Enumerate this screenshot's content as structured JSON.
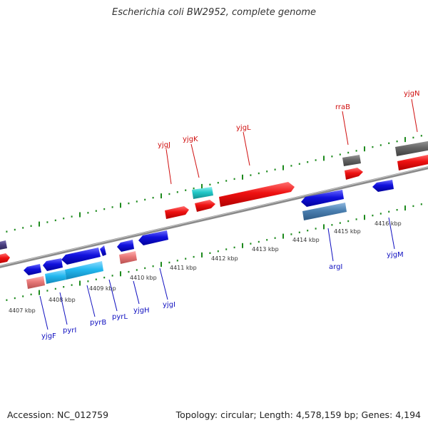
{
  "title": "Escherichia coli BW2952, complete genome",
  "footer": {
    "accession": "Accession: NC_012759",
    "summary": "Topology: circular; Length: 4,578,159 bp; Genes: 4,194"
  },
  "colors": {
    "background": "#ffffff",
    "backbone": "#8a8a8a",
    "tick_green": "#1d8a1d",
    "forward_label": "#d01010",
    "reverse_label": "#1010c0",
    "red_gene": "#ee1111",
    "blue_gene": "#1111dd",
    "cyan_gene": "#22c8c8",
    "light_blue_gene": "#22b8f0",
    "pink_gene": "#e87878",
    "gray_gene": "#666666",
    "steel_gene": "#4a7fb0",
    "purple_gene": "#4a3f80"
  },
  "kbp_labels": [
    "4407 kbp",
    "4408 kbp",
    "4409 kbp",
    "4410 kbp",
    "4411 kbp",
    "4412 kbp",
    "4413 kbp",
    "4414 kbp",
    "4415 kbp",
    "4416 kbp"
  ],
  "forward_genes": [
    "yjgJ",
    "yjgK",
    "yjgL",
    "rraB",
    "yjgN"
  ],
  "reverse_genes": [
    "yjgF",
    "pyrI",
    "pyrB",
    "pyrL",
    "yjgH",
    "yjgI",
    "argI",
    "yjgM"
  ]
}
